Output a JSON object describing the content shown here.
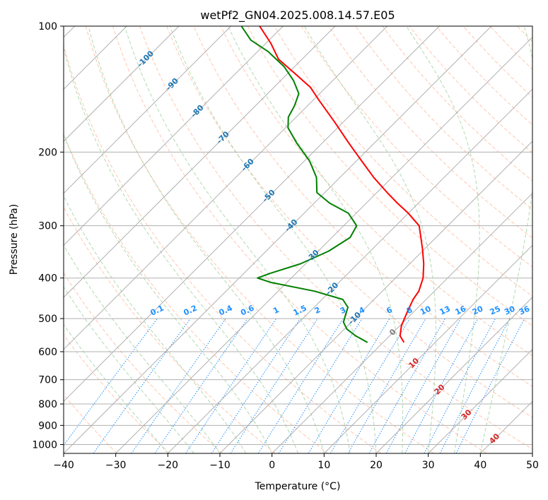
{
  "chart_data": {
    "type": "line",
    "title": "wetPf2_GN04.2025.008.14.57.E05",
    "xlabel": "Temperature (°C)",
    "ylabel": "Pressure (hPa)",
    "xlim": [
      -40,
      50
    ],
    "ylim": [
      1050,
      100
    ],
    "y_scale": "log",
    "x_ticks": [
      -40,
      -30,
      -20,
      -10,
      0,
      10,
      20,
      30,
      40,
      50
    ],
    "x_tick_labels": [
      "−40",
      "−30",
      "−20",
      "−10",
      "0",
      "10",
      "20",
      "30",
      "40",
      "50"
    ],
    "y_ticks": [
      1000,
      900,
      800,
      700,
      600,
      500,
      400,
      300,
      200,
      100
    ],
    "y_tick_labels": [
      "1000",
      "900",
      "800",
      "700",
      "600",
      "500",
      "400",
      "300",
      "200",
      "100"
    ],
    "grid": true,
    "skew_degrees": 45,
    "colors": {
      "temperature": "#ff0000",
      "dewpoint": "#008000",
      "isotherm": "#b0b0b0",
      "dry_adiabat": "#ffa07a",
      "moist_adiabat": "#90c990",
      "mixing_ratio": "#1e90ff",
      "mixing_ratio_label": "#1e90ff",
      "isotherm_label_upper": "#1f77b4",
      "isotherm_label_lower": "#d62728",
      "isotherm_label_zero": "#7f7f7f"
    },
    "series": [
      {
        "key": "temperature",
        "points": [
          {
            "p": 570,
            "t": 4.0
          },
          {
            "p": 550,
            "t": 2.0
          },
          {
            "p": 520,
            "t": 0.3
          },
          {
            "p": 480,
            "t": -1.3
          },
          {
            "p": 450,
            "t": -2.5
          },
          {
            "p": 430,
            "t": -3.0
          },
          {
            "p": 400,
            "t": -4.7
          },
          {
            "p": 370,
            "t": -7.3
          },
          {
            "p": 340,
            "t": -10.5
          },
          {
            "p": 300,
            "t": -15.5
          },
          {
            "p": 280,
            "t": -20.0
          },
          {
            "p": 265,
            "t": -24.0
          },
          {
            "p": 250,
            "t": -28.0
          },
          {
            "p": 230,
            "t": -33.5
          },
          {
            "p": 210,
            "t": -39.0
          },
          {
            "p": 190,
            "t": -45.0
          },
          {
            "p": 170,
            "t": -51.5
          },
          {
            "p": 150,
            "t": -59.0
          },
          {
            "p": 140,
            "t": -63.0
          },
          {
            "p": 130,
            "t": -68.5
          },
          {
            "p": 120,
            "t": -74.5
          },
          {
            "p": 110,
            "t": -79.0
          },
          {
            "p": 100,
            "t": -84.5
          }
        ]
      },
      {
        "key": "dewpoint",
        "points": [
          {
            "p": 570,
            "t": -3.0
          },
          {
            "p": 550,
            "t": -6.5
          },
          {
            "p": 530,
            "t": -9.5
          },
          {
            "p": 510,
            "t": -11.5
          },
          {
            "p": 490,
            "t": -12.5
          },
          {
            "p": 470,
            "t": -13.5
          },
          {
            "p": 450,
            "t": -16.0
          },
          {
            "p": 430,
            "t": -23.0
          },
          {
            "p": 410,
            "t": -33.0
          },
          {
            "p": 400,
            "t": -36.5
          },
          {
            "p": 390,
            "t": -35.0
          },
          {
            "p": 370,
            "t": -31.0
          },
          {
            "p": 345,
            "t": -28.0
          },
          {
            "p": 320,
            "t": -26.5
          },
          {
            "p": 300,
            "t": -27.5
          },
          {
            "p": 280,
            "t": -31.5
          },
          {
            "p": 265,
            "t": -37.0
          },
          {
            "p": 250,
            "t": -41.5
          },
          {
            "p": 230,
            "t": -44.5
          },
          {
            "p": 210,
            "t": -49.0
          },
          {
            "p": 190,
            "t": -55.0
          },
          {
            "p": 175,
            "t": -59.5
          },
          {
            "p": 165,
            "t": -61.5
          },
          {
            "p": 155,
            "t": -62.5
          },
          {
            "p": 145,
            "t": -64.0
          },
          {
            "p": 135,
            "t": -67.5
          },
          {
            "p": 125,
            "t": -72.0
          },
          {
            "p": 115,
            "t": -78.0
          },
          {
            "p": 108,
            "t": -83.5
          },
          {
            "p": 100,
            "t": -88.0
          }
        ]
      }
    ],
    "isotherm_labels_upper": [
      {
        "text": "-100",
        "t": -100,
        "p": 120
      },
      {
        "text": "-90",
        "t": -90,
        "p": 138
      },
      {
        "text": "-80",
        "t": -80,
        "p": 160
      },
      {
        "text": "-70",
        "t": -70,
        "p": 185
      },
      {
        "text": "-60",
        "t": -60,
        "p": 215
      },
      {
        "text": "-50",
        "t": -50,
        "p": 255
      },
      {
        "text": "-40",
        "t": -40,
        "p": 300
      },
      {
        "text": "-30",
        "t": -30,
        "p": 355
      },
      {
        "text": "-20",
        "t": -20,
        "p": 425
      },
      {
        "text": "-10",
        "t": -10,
        "p": 500
      }
    ],
    "isotherm_labels_lower": [
      {
        "text": "0",
        "t": 0,
        "p": 540,
        "c": "zero"
      },
      {
        "text": "10",
        "t": 10,
        "p": 640,
        "c": "lower"
      },
      {
        "text": "20",
        "t": 20,
        "p": 740,
        "c": "lower"
      },
      {
        "text": "30",
        "t": 30,
        "p": 850,
        "c": "lower"
      },
      {
        "text": "40",
        "t": 40,
        "p": 970,
        "c": "lower"
      }
    ],
    "mixing_ratio_values": [
      0.1,
      0.2,
      0.4,
      0.6,
      1,
      1.5,
      2,
      3,
      4,
      6,
      8,
      10,
      13,
      16,
      20,
      25,
      30,
      36
    ],
    "mixing_ratio_labels": [
      "0.1",
      "0.2",
      "0.4",
      "0.6",
      "1",
      "1.5",
      "2",
      "3",
      "4",
      "6",
      "8",
      "10",
      "13",
      "16",
      "20",
      "25",
      "30",
      "36"
    ]
  }
}
